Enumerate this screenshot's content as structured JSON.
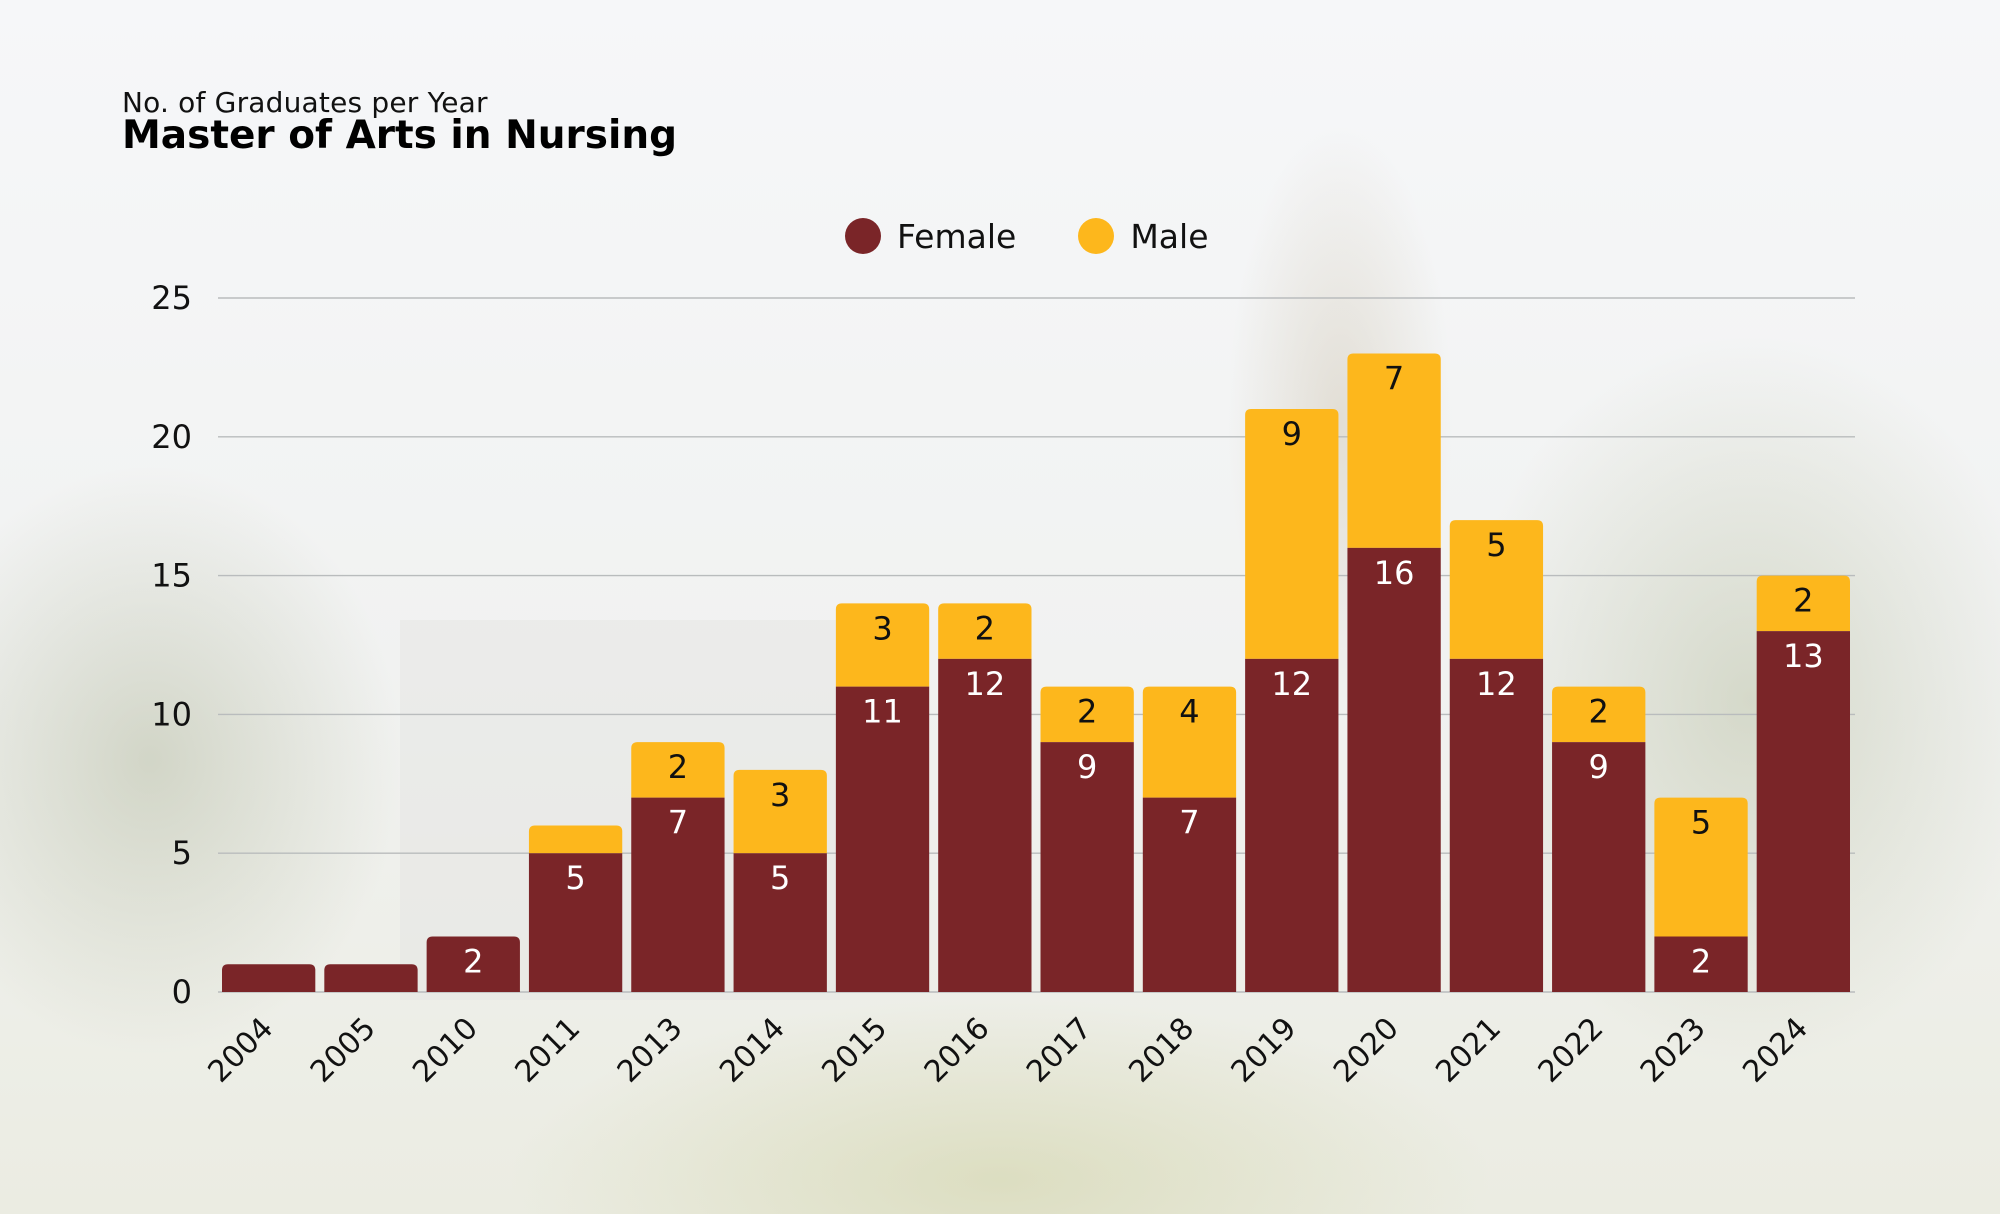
{
  "header": {
    "subtitle": "No. of Graduates per Year",
    "title": "Master of Arts in Nursing"
  },
  "legend": [
    {
      "name": "Female",
      "color": "#7a2528"
    },
    {
      "name": "Male",
      "color": "#fdb71c"
    }
  ],
  "chart_data": {
    "type": "bar",
    "stacked": true,
    "title": "Master of Arts in Nursing",
    "subtitle": "No. of Graduates per Year",
    "xlabel": "",
    "ylabel": "",
    "categories": [
      "2004",
      "2005",
      "2010",
      "2011",
      "2013",
      "2014",
      "2015",
      "2016",
      "2017",
      "2018",
      "2019",
      "2020",
      "2021",
      "2022",
      "2023",
      "2024"
    ],
    "series": [
      {
        "name": "Female",
        "color": "#7a2528",
        "values": [
          1,
          1,
          2,
          5,
          7,
          5,
          11,
          12,
          9,
          7,
          12,
          16,
          12,
          9,
          2,
          13
        ],
        "labels": [
          "",
          "",
          "2",
          "5",
          "7",
          "5",
          "11",
          "12",
          "9",
          "7",
          "12",
          "16",
          "12",
          "9",
          "2",
          "13"
        ]
      },
      {
        "name": "Male",
        "color": "#fdb71c",
        "values": [
          0,
          0,
          0,
          1,
          2,
          3,
          3,
          2,
          2,
          4,
          9,
          7,
          5,
          2,
          5,
          2
        ],
        "labels": [
          "",
          "",
          "",
          "",
          "2",
          "3",
          "3",
          "2",
          "2",
          "4",
          "9",
          "7",
          "5",
          "2",
          "5",
          "2"
        ]
      }
    ],
    "yticks": [
      0,
      5,
      10,
      15,
      20,
      25
    ],
    "ylim": [
      0,
      25
    ],
    "grid": true,
    "legend_position": "top-center",
    "xtick_rotation": "45deg"
  }
}
